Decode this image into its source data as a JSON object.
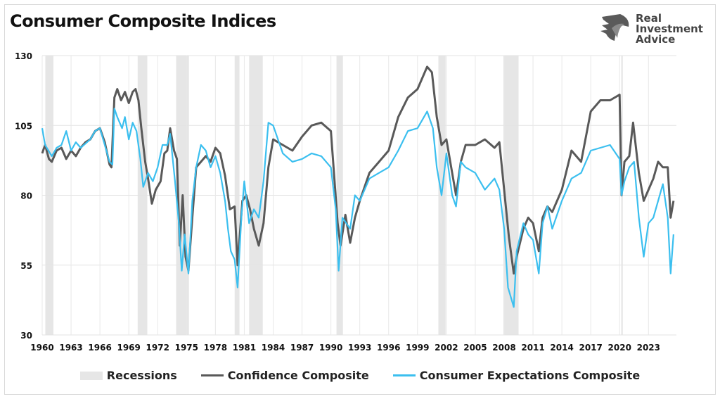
{
  "chart_data": {
    "type": "line",
    "title": "Consumer Composite Indices",
    "xlabel": "",
    "ylabel": "",
    "xlim": [
      1960,
      2025.9
    ],
    "ylim": [
      30,
      130
    ],
    "y_ticks": [
      30,
      55,
      80,
      105,
      130
    ],
    "x_ticks": [
      "1960",
      "1963",
      "1966",
      "1969",
      "1972",
      "1975",
      "1978",
      "1981",
      "1984",
      "1987",
      "1990",
      "1993",
      "1996",
      "1999",
      "2002",
      "2005",
      "2008",
      "2011",
      "2014",
      "2017",
      "2020",
      "2023"
    ],
    "grid": true,
    "legend": "bottom",
    "recessions": {
      "name": "Recessions",
      "color": "#e6e6e6",
      "periods": [
        [
          1960.33,
          1961.17
        ],
        [
          1969.92,
          1970.92
        ],
        [
          1973.92,
          1975.25
        ],
        [
          1980.0,
          1980.5
        ],
        [
          1981.5,
          1982.92
        ],
        [
          1990.58,
          1991.25
        ],
        [
          2001.17,
          2001.92
        ],
        [
          2007.92,
          2009.5
        ],
        [
          2020.17,
          2020.33
        ]
      ]
    },
    "series": [
      {
        "name": "Confidence Composite",
        "color": "#595959",
        "points": [
          [
            1960,
            95
          ],
          [
            1960.3,
            98
          ],
          [
            1960.7,
            93
          ],
          [
            1961,
            92
          ],
          [
            1961.5,
            96
          ],
          [
            1962,
            97
          ],
          [
            1962.5,
            93
          ],
          [
            1963,
            96
          ],
          [
            1963.5,
            94
          ],
          [
            1964,
            97
          ],
          [
            1964.5,
            99
          ],
          [
            1965,
            100
          ],
          [
            1965.5,
            103
          ],
          [
            1966,
            104
          ],
          [
            1966.5,
            99
          ],
          [
            1967,
            91
          ],
          [
            1967.2,
            90
          ],
          [
            1967.5,
            115
          ],
          [
            1967.8,
            118
          ],
          [
            1968.2,
            114
          ],
          [
            1968.6,
            117
          ],
          [
            1969,
            113
          ],
          [
            1969.4,
            117
          ],
          [
            1969.7,
            118
          ],
          [
            1970,
            114
          ],
          [
            1970.3,
            104
          ],
          [
            1970.7,
            92
          ],
          [
            1971,
            86
          ],
          [
            1971.4,
            77
          ],
          [
            1971.8,
            82
          ],
          [
            1972.3,
            85
          ],
          [
            1972.7,
            95
          ],
          [
            1973,
            96
          ],
          [
            1973.3,
            104
          ],
          [
            1973.7,
            96
          ],
          [
            1974,
            93
          ],
          [
            1974.3,
            62
          ],
          [
            1974.6,
            80
          ],
          [
            1974.9,
            58
          ],
          [
            1975.2,
            53
          ],
          [
            1975.6,
            72
          ],
          [
            1976,
            90
          ],
          [
            1976.5,
            92
          ],
          [
            1977,
            94
          ],
          [
            1977.5,
            92
          ],
          [
            1978,
            97
          ],
          [
            1978.5,
            95
          ],
          [
            1979,
            87
          ],
          [
            1979.5,
            75
          ],
          [
            1980,
            76
          ],
          [
            1980.3,
            55
          ],
          [
            1980.8,
            78
          ],
          [
            1981.2,
            80
          ],
          [
            1981.6,
            75
          ],
          [
            1982,
            68
          ],
          [
            1982.5,
            62
          ],
          [
            1983,
            70
          ],
          [
            1983.5,
            90
          ],
          [
            1984,
            100
          ],
          [
            1985,
            98
          ],
          [
            1986,
            96
          ],
          [
            1987,
            101
          ],
          [
            1988,
            105
          ],
          [
            1989,
            106
          ],
          [
            1990,
            103
          ],
          [
            1990.7,
            70
          ],
          [
            1991,
            62
          ],
          [
            1991.5,
            73
          ],
          [
            1992,
            63
          ],
          [
            1992.5,
            72
          ],
          [
            1993,
            78
          ],
          [
            1994,
            88
          ],
          [
            1995,
            92
          ],
          [
            1996,
            96
          ],
          [
            1997,
            108
          ],
          [
            1998,
            115
          ],
          [
            1999,
            118
          ],
          [
            2000,
            126
          ],
          [
            2000.5,
            124
          ],
          [
            2001,
            108
          ],
          [
            2001.5,
            98
          ],
          [
            2002,
            100
          ],
          [
            2002.5,
            90
          ],
          [
            2003,
            80
          ],
          [
            2003.5,
            92
          ],
          [
            2004,
            98
          ],
          [
            2005,
            98
          ],
          [
            2006,
            100
          ],
          [
            2007,
            97
          ],
          [
            2007.5,
            99
          ],
          [
            2008,
            82
          ],
          [
            2008.5,
            65
          ],
          [
            2009,
            52
          ],
          [
            2009.3,
            58
          ],
          [
            2010,
            68
          ],
          [
            2010.5,
            72
          ],
          [
            2011,
            70
          ],
          [
            2011.6,
            60
          ],
          [
            2012,
            72
          ],
          [
            2012.5,
            76
          ],
          [
            2013,
            74
          ],
          [
            2014,
            82
          ],
          [
            2015,
            96
          ],
          [
            2016,
            92
          ],
          [
            2017,
            110
          ],
          [
            2018,
            114
          ],
          [
            2019,
            114
          ],
          [
            2020,
            116
          ],
          [
            2020.2,
            80
          ],
          [
            2020.5,
            92
          ],
          [
            2021,
            94
          ],
          [
            2021.4,
            106
          ],
          [
            2022,
            88
          ],
          [
            2022.5,
            78
          ],
          [
            2023,
            82
          ],
          [
            2023.5,
            86
          ],
          [
            2024,
            92
          ],
          [
            2024.5,
            90
          ],
          [
            2025,
            90
          ],
          [
            2025.3,
            72
          ],
          [
            2025.6,
            78
          ]
        ]
      },
      {
        "name": "Consumer Expectations Composite",
        "color": "#3bbfef",
        "points": [
          [
            1960,
            104
          ],
          [
            1960.3,
            98
          ],
          [
            1961,
            94
          ],
          [
            1961.5,
            97
          ],
          [
            1962,
            98
          ],
          [
            1962.5,
            103
          ],
          [
            1963,
            96
          ],
          [
            1963.5,
            99
          ],
          [
            1964,
            97
          ],
          [
            1965,
            100
          ],
          [
            1965.5,
            103
          ],
          [
            1966,
            104
          ],
          [
            1966.5,
            98
          ],
          [
            1967,
            92
          ],
          [
            1967.3,
            91
          ],
          [
            1967.5,
            111
          ],
          [
            1967.8,
            108
          ],
          [
            1968.3,
            104
          ],
          [
            1968.6,
            108
          ],
          [
            1969,
            100
          ],
          [
            1969.4,
            106
          ],
          [
            1969.8,
            103
          ],
          [
            1970.2,
            93
          ],
          [
            1970.5,
            83
          ],
          [
            1971,
            88
          ],
          [
            1971.5,
            85
          ],
          [
            1972,
            90
          ],
          [
            1972.5,
            98
          ],
          [
            1973,
            98
          ],
          [
            1973.3,
            102
          ],
          [
            1973.8,
            85
          ],
          [
            1974.2,
            70
          ],
          [
            1974.5,
            53
          ],
          [
            1974.8,
            66
          ],
          [
            1975.2,
            52
          ],
          [
            1975.6,
            78
          ],
          [
            1976,
            90
          ],
          [
            1976.5,
            98
          ],
          [
            1977,
            96
          ],
          [
            1977.5,
            90
          ],
          [
            1978,
            94
          ],
          [
            1978.5,
            88
          ],
          [
            1979,
            78
          ],
          [
            1979.3,
            68
          ],
          [
            1979.6,
            60
          ],
          [
            1980,
            57
          ],
          [
            1980.3,
            47
          ],
          [
            1980.7,
            72
          ],
          [
            1981,
            85
          ],
          [
            1981.5,
            70
          ],
          [
            1982,
            75
          ],
          [
            1982.5,
            72
          ],
          [
            1983,
            85
          ],
          [
            1983.5,
            106
          ],
          [
            1984,
            105
          ],
          [
            1985,
            95
          ],
          [
            1986,
            92
          ],
          [
            1987,
            93
          ],
          [
            1988,
            95
          ],
          [
            1989,
            94
          ],
          [
            1990,
            90
          ],
          [
            1990.5,
            75
          ],
          [
            1990.8,
            53
          ],
          [
            1991.2,
            72
          ],
          [
            1992,
            68
          ],
          [
            1992.5,
            80
          ],
          [
            1993,
            78
          ],
          [
            1994,
            86
          ],
          [
            1995,
            88
          ],
          [
            1996,
            90
          ],
          [
            1997,
            96
          ],
          [
            1998,
            103
          ],
          [
            1999,
            104
          ],
          [
            2000,
            110
          ],
          [
            2000.6,
            104
          ],
          [
            2001,
            90
          ],
          [
            2001.5,
            80
          ],
          [
            2002,
            95
          ],
          [
            2002.6,
            80
          ],
          [
            2003,
            76
          ],
          [
            2003.5,
            92
          ],
          [
            2004,
            90
          ],
          [
            2005,
            88
          ],
          [
            2006,
            82
          ],
          [
            2007,
            86
          ],
          [
            2007.5,
            82
          ],
          [
            2008,
            68
          ],
          [
            2008.4,
            47
          ],
          [
            2009,
            40
          ],
          [
            2009.3,
            60
          ],
          [
            2010,
            70
          ],
          [
            2010.5,
            66
          ],
          [
            2011,
            64
          ],
          [
            2011.6,
            52
          ],
          [
            2012,
            70
          ],
          [
            2012.5,
            76
          ],
          [
            2013,
            68
          ],
          [
            2014,
            78
          ],
          [
            2015,
            86
          ],
          [
            2016,
            88
          ],
          [
            2017,
            96
          ],
          [
            2018,
            97
          ],
          [
            2019,
            98
          ],
          [
            2020,
            93
          ],
          [
            2020.2,
            80
          ],
          [
            2020.5,
            85
          ],
          [
            2021,
            90
          ],
          [
            2021.5,
            92
          ],
          [
            2022,
            72
          ],
          [
            2022.5,
            58
          ],
          [
            2023,
            70
          ],
          [
            2023.5,
            72
          ],
          [
            2024,
            78
          ],
          [
            2024.5,
            84
          ],
          [
            2025,
            72
          ],
          [
            2025.3,
            52
          ],
          [
            2025.6,
            66
          ]
        ]
      }
    ]
  },
  "logo": {
    "text": [
      "Real",
      "Investment",
      "Advice"
    ]
  }
}
